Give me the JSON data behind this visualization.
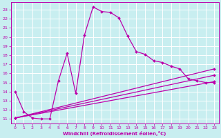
{
  "xlabel": "Windchill (Refroidissement éolien,°C)",
  "bg_color": "#c8eef0",
  "grid_color": "#ffffff",
  "line_color": "#bb00aa",
  "xlim": [
    -0.5,
    23.5
  ],
  "ylim": [
    10.5,
    23.8
  ],
  "yticks": [
    11,
    12,
    13,
    14,
    15,
    16,
    17,
    18,
    19,
    20,
    21,
    22,
    23
  ],
  "xticks": [
    0,
    1,
    2,
    3,
    4,
    5,
    6,
    7,
    8,
    9,
    10,
    11,
    12,
    13,
    14,
    15,
    16,
    17,
    18,
    19,
    20,
    21,
    22,
    23
  ],
  "curve1_x": [
    0,
    1,
    2,
    3,
    4,
    5,
    6,
    7,
    8,
    9,
    10,
    11,
    12,
    13,
    14,
    15,
    16,
    17,
    18,
    19,
    20,
    21,
    22,
    23
  ],
  "curve1_y": [
    14.0,
    11.8,
    11.1,
    11.0,
    11.0,
    15.2,
    18.2,
    13.8,
    20.2,
    23.3,
    22.8,
    22.7,
    22.1,
    20.1,
    18.4,
    18.1,
    17.4,
    17.2,
    16.8,
    16.5,
    15.4,
    15.2,
    15.0,
    15.0
  ],
  "line1_x": [
    0,
    23
  ],
  "line1_y": [
    11.1,
    15.1
  ],
  "line2_x": [
    0,
    23
  ],
  "line2_y": [
    11.1,
    15.8
  ],
  "line3_x": [
    0,
    23
  ],
  "line3_y": [
    11.1,
    16.5
  ],
  "marker_style": "D",
  "marker_size": 2.0,
  "line_width": 0.9,
  "tick_labelsize": 4.5,
  "xlabel_fontsize": 5.0,
  "xlabel_fontweight": "bold"
}
